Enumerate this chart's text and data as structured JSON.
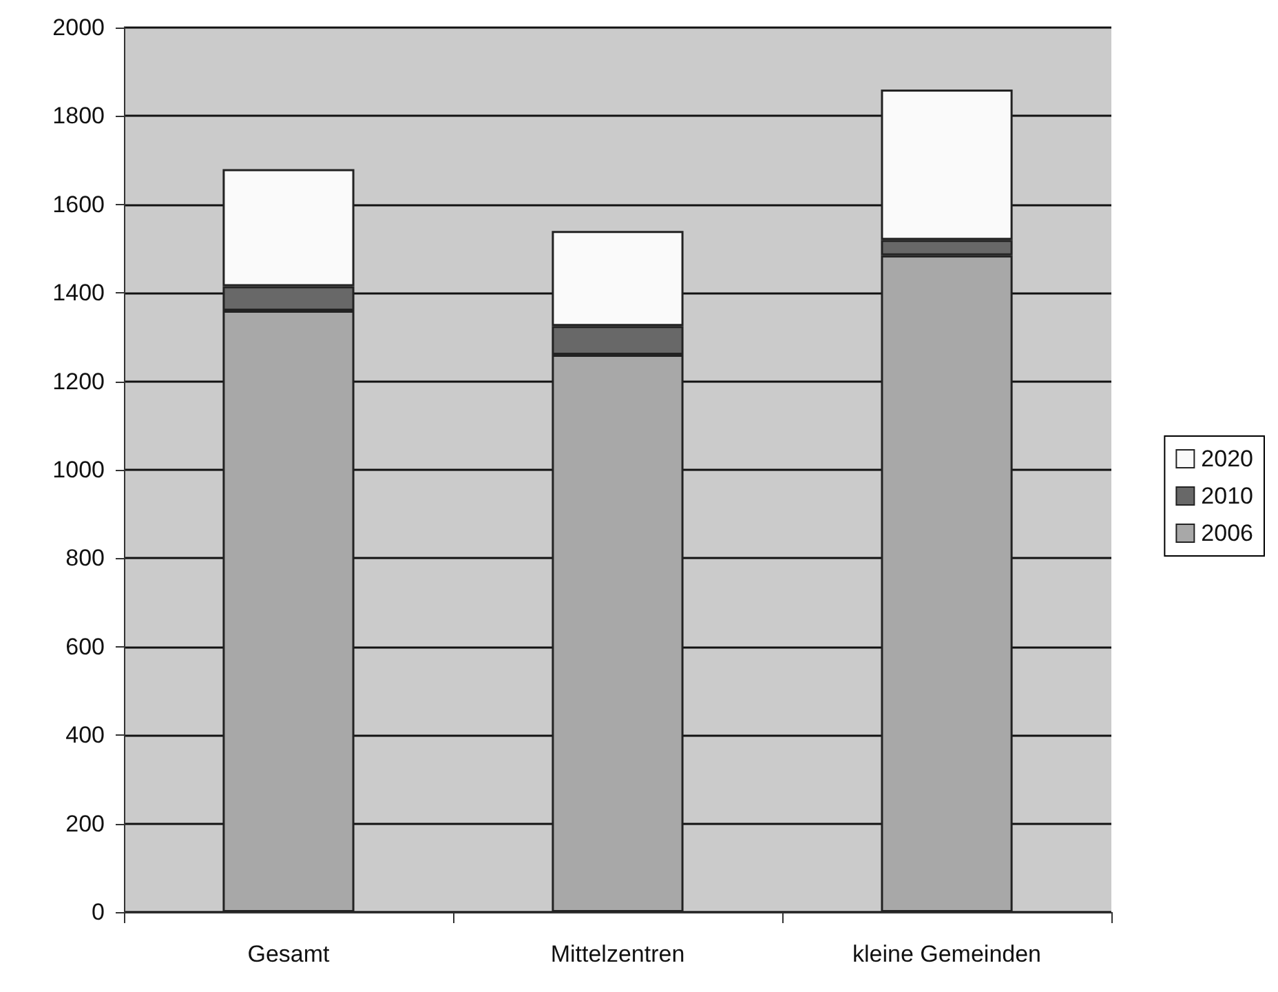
{
  "chart_data": {
    "type": "bar",
    "stacked": true,
    "categories": [
      "Gesamt",
      "Mittelzentren",
      "kleine Gemeinden"
    ],
    "series": [
      {
        "name": "2006",
        "color": "#a8a8a8",
        "values": [
          1360,
          1260,
          1485
        ]
      },
      {
        "name": "2010",
        "color": "#686868",
        "values": [
          55,
          65,
          35
        ]
      },
      {
        "name": "2020",
        "color": "#fafafa",
        "values": [
          265,
          215,
          340
        ]
      }
    ],
    "ylim": [
      0,
      2000
    ],
    "yticks": [
      0,
      200,
      400,
      600,
      800,
      1000,
      1200,
      1400,
      1600,
      1800,
      2000
    ],
    "grid": "y",
    "legend": "right"
  }
}
